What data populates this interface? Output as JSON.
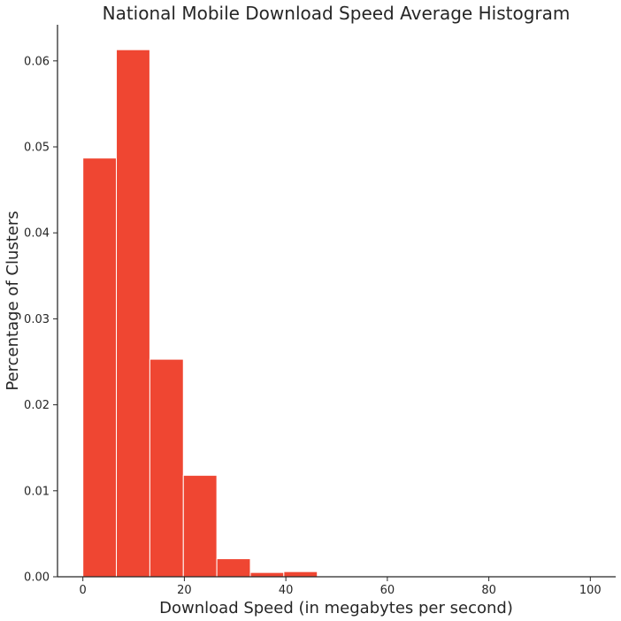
{
  "chart_data": {
    "type": "bar",
    "title": "National Mobile Download Speed Average Histogram",
    "xlabel": "Download Speed (in megabytes per second)",
    "ylabel": "Percentage of Clusters",
    "xlim": [
      -5,
      105
    ],
    "ylim": [
      0,
      0.0642
    ],
    "x_ticks": [
      0,
      20,
      40,
      60,
      80,
      100
    ],
    "y_ticks": [
      0.0,
      0.01,
      0.02,
      0.03,
      0.04,
      0.05,
      0.06
    ],
    "y_tick_labels": [
      "0.00",
      "0.01",
      "0.02",
      "0.03",
      "0.04",
      "0.05",
      "0.06"
    ],
    "bins": [
      {
        "x0": 0,
        "x1": 6.6,
        "value": 0.0487
      },
      {
        "x0": 6.6,
        "x1": 13.2,
        "value": 0.0613
      },
      {
        "x0": 13.2,
        "x1": 19.8,
        "value": 0.0253
      },
      {
        "x0": 19.8,
        "x1": 26.4,
        "value": 0.0118
      },
      {
        "x0": 26.4,
        "x1": 33.0,
        "value": 0.0021
      },
      {
        "x0": 33.0,
        "x1": 39.6,
        "value": 0.0005
      },
      {
        "x0": 39.6,
        "x1": 46.2,
        "value": 0.0006
      }
    ],
    "bar_color": "#ef4632",
    "grid": false,
    "legend": "none"
  }
}
